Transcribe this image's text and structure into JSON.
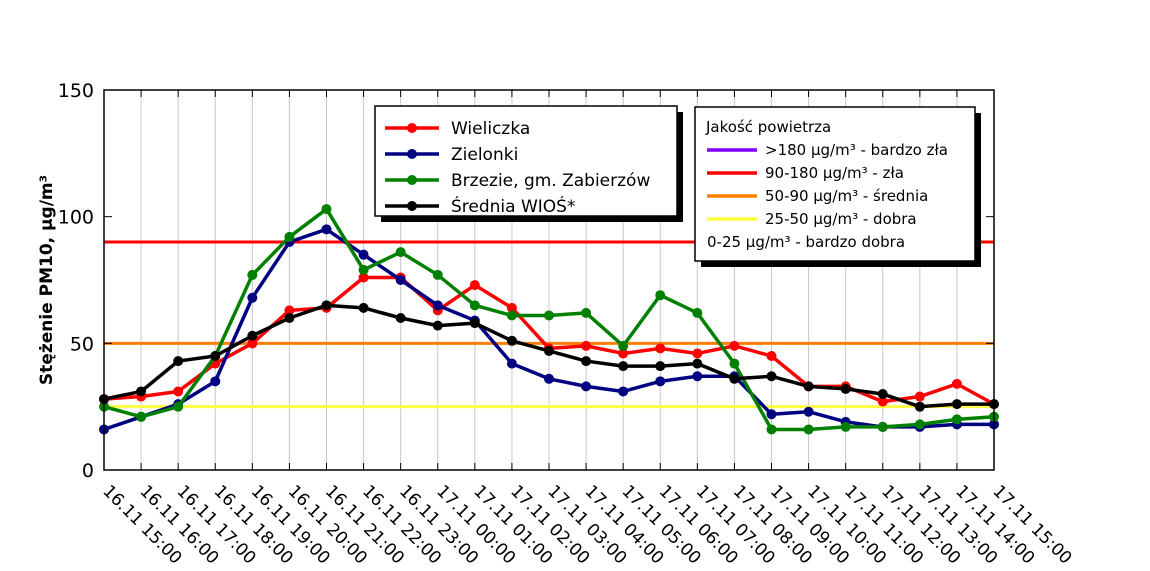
{
  "chart_data": {
    "type": "line",
    "ylabel": "Stężenie PM10, μg/m³",
    "xlabel": "",
    "ylim": [
      0,
      150
    ],
    "yticks": [
      0,
      50,
      100,
      150
    ],
    "grid": "vertical",
    "x": [
      "16.11 15:00",
      "16.11 16:00",
      "16.11 17:00",
      "16.11 18:00",
      "16.11 19:00",
      "16.11 20:00",
      "16.11 21:00",
      "16.11 22:00",
      "16.11 23:00",
      "17.11 00:00",
      "17.11 01:00",
      "17.11 02:00",
      "17.11 03:00",
      "17.11 04:00",
      "17.11 05:00",
      "17.11 06:00",
      "17.11 07:00",
      "17.11 08:00",
      "17.11 09:00",
      "17.11 10:00",
      "17.11 11:00",
      "17.11 12:00",
      "17.11 13:00",
      "17.11 14:00",
      "17.11 15:00"
    ],
    "series": [
      {
        "name": "Wieliczka",
        "color": "#ff0000",
        "values": [
          28,
          29,
          31,
          42,
          50,
          63,
          64,
          76,
          76,
          63,
          73,
          64,
          48,
          49,
          46,
          48,
          46,
          49,
          45,
          33,
          33,
          27,
          29,
          34,
          26
        ]
      },
      {
        "name": "Zielonki",
        "color": "#000080",
        "values": [
          16,
          21,
          26,
          35,
          68,
          90,
          95,
          85,
          75,
          65,
          59,
          42,
          36,
          33,
          31,
          35,
          37,
          37,
          22,
          23,
          19,
          17,
          17,
          18,
          18
        ]
      },
      {
        "name": "Brzezie, gm. Zabierzów",
        "color": "#008000",
        "values": [
          25,
          21,
          25,
          45,
          77,
          92,
          103,
          79,
          86,
          77,
          65,
          61,
          61,
          62,
          49,
          69,
          62,
          42,
          16,
          16,
          17,
          17,
          18,
          20,
          21
        ]
      },
      {
        "name": "Średnia WIOŚ*",
        "color": "#000000",
        "values": [
          28,
          31,
          43,
          45,
          53,
          60,
          65,
          64,
          60,
          57,
          58,
          51,
          47,
          43,
          41,
          41,
          42,
          36,
          37,
          33,
          32,
          30,
          25,
          26,
          26
        ]
      }
    ],
    "thresholds": [
      {
        "label": ">180 μg/m³ - bardzo zła",
        "color": "#8000ff",
        "value": 180
      },
      {
        "label": "90-180 μg/m³ - zła",
        "color": "#ff0000",
        "value": 90
      },
      {
        "label": "50-90 μg/m³ - średnia",
        "color": "#ff8000",
        "value": 50
      },
      {
        "label": "25-50 μg/m³ - dobra",
        "color": "#ffff44",
        "value": 25
      },
      {
        "label": "0-25 μg/m³ - bardzo dobra",
        "color": "",
        "value": 0
      }
    ],
    "quality_legend_title": "Jakość powietrza",
    "legend_position": "top-center"
  }
}
